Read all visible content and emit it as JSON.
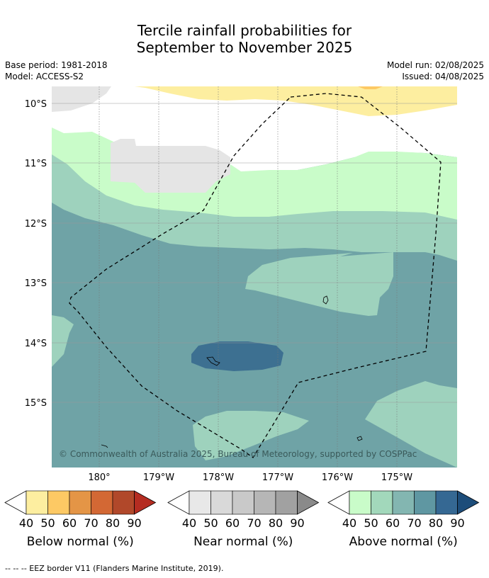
{
  "title_line1": "Tercile rainfall probabilities for",
  "title_line2": "September to November 2025",
  "base_period": "Base period: 1981-2018",
  "model": "Model: ACCESS-S2",
  "model_run": "Model run: 02/08/2025",
  "issued": "Issued: 04/08/2025",
  "copyright": "© Commonwealth of Australia 2025, Bureau of Meteorology, supported by COSPPac",
  "lat_labels": [
    "10°S",
    "11°S",
    "12°S",
    "13°S",
    "14°S",
    "15°S"
  ],
  "lon_labels": [
    "180°",
    "179°W",
    "178°W",
    "177°W",
    "176°W",
    "175°W"
  ],
  "legends": [
    {
      "caption": "Below normal (%)",
      "ticks": [
        "40",
        "50",
        "60",
        "70",
        "80",
        "90"
      ],
      "colors": [
        "#fdeea0",
        "#fdc964",
        "#e49546",
        "#d36834",
        "#b1482a",
        "#b52c21"
      ]
    },
    {
      "caption": "Near normal (%)",
      "ticks": [
        "40",
        "50",
        "60",
        "70",
        "80",
        "90"
      ],
      "colors": [
        "#e8e8e8",
        "#d9d9d9",
        "#c9c9c9",
        "#b6b6b6",
        "#a1a1a1",
        "#8a8a8a"
      ]
    },
    {
      "caption": "Above normal (%)",
      "ticks": [
        "40",
        "50",
        "60",
        "70",
        "80",
        "90"
      ],
      "colors": [
        "#c9fcc9",
        "#a2d8bb",
        "#83b6b1",
        "#5f97a2",
        "#356893",
        "#1d4d7a"
      ]
    }
  ],
  "footer": "--  --  -- EEZ border V11 (Flanders Marine Institute, 2019)."
}
